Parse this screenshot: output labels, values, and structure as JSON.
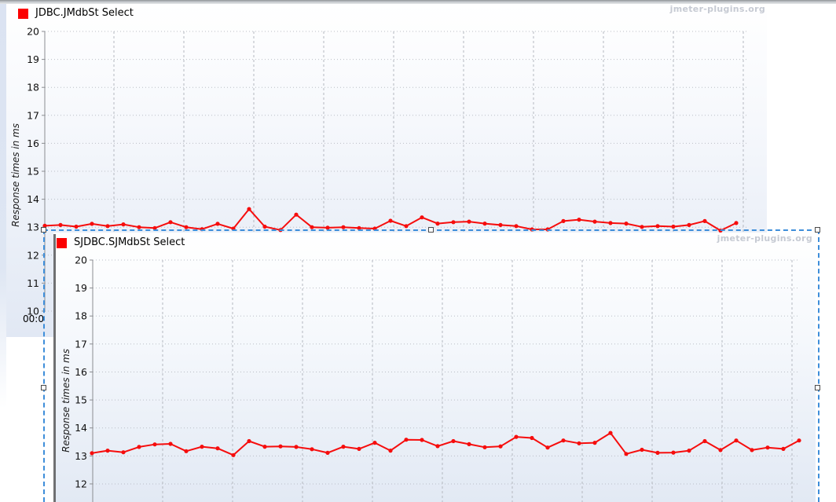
{
  "page": {
    "background": "#ffffff",
    "watermark": "jmeter-plugins.org"
  },
  "selection": {
    "border_color": "#3e8eda",
    "handles": [
      "top-left",
      "top-middle",
      "top-right",
      "middle-left",
      "middle-right"
    ]
  },
  "chart_data": [
    {
      "type": "line",
      "title": "JDBC.JMdbSt Select",
      "watermark": "jmeter-plugins.org",
      "ylabel": "Response times in ms",
      "xlabel_visible": "00:0",
      "ylim": [
        10,
        20
      ],
      "yticks": [
        20,
        19,
        18,
        17,
        16,
        15,
        14,
        13,
        12,
        11,
        10
      ],
      "grid": true,
      "legend_position": "top-left",
      "legend": [
        {
          "label": "JDBC.JMdbSt Select",
          "color": "#fb0000"
        }
      ],
      "series": [
        {
          "name": "JDBC.JMdbSt Select",
          "color": "#f60d0d",
          "values": [
            13.05,
            13.08,
            13.02,
            13.12,
            13.04,
            13.1,
            13.0,
            12.97,
            13.18,
            13.0,
            12.93,
            13.12,
            12.95,
            13.65,
            13.02,
            12.9,
            13.45,
            13.0,
            12.98,
            13.0,
            12.97,
            12.95,
            13.23,
            13.04,
            13.35,
            13.13,
            13.18,
            13.2,
            13.13,
            13.08,
            13.04,
            12.92,
            12.92,
            13.22,
            13.27,
            13.2,
            13.15,
            13.13,
            13.01,
            13.04,
            13.02,
            13.08,
            13.22,
            12.88,
            13.15
          ]
        }
      ]
    },
    {
      "type": "line",
      "title": "SJDBC.SJMdbSt Select",
      "watermark": "jmeter-plugins.org",
      "ylabel": "Response times in ms",
      "ylim": [
        12,
        20
      ],
      "yticks": [
        20,
        19,
        18,
        17,
        16,
        15,
        14,
        13,
        12
      ],
      "grid": true,
      "legend_position": "top-left",
      "legend": [
        {
          "label": "SJDBC.SJMdbSt Select",
          "color": "#fb0000"
        }
      ],
      "series": [
        {
          "name": "SJDBC.SJMdbSt Select",
          "color": "#f60d0d",
          "values": [
            13.1,
            13.19,
            13.13,
            13.32,
            13.41,
            13.43,
            13.17,
            13.33,
            13.27,
            13.03,
            13.53,
            13.33,
            13.34,
            13.32,
            13.24,
            13.11,
            13.33,
            13.25,
            13.47,
            13.19,
            13.58,
            13.57,
            13.35,
            13.53,
            13.42,
            13.31,
            13.34,
            13.68,
            13.64,
            13.3,
            13.55,
            13.45,
            13.47,
            13.82,
            13.07,
            13.22,
            13.11,
            13.12,
            13.19,
            13.53,
            13.21,
            13.55,
            13.21,
            13.3,
            13.25,
            13.55
          ]
        }
      ]
    }
  ]
}
